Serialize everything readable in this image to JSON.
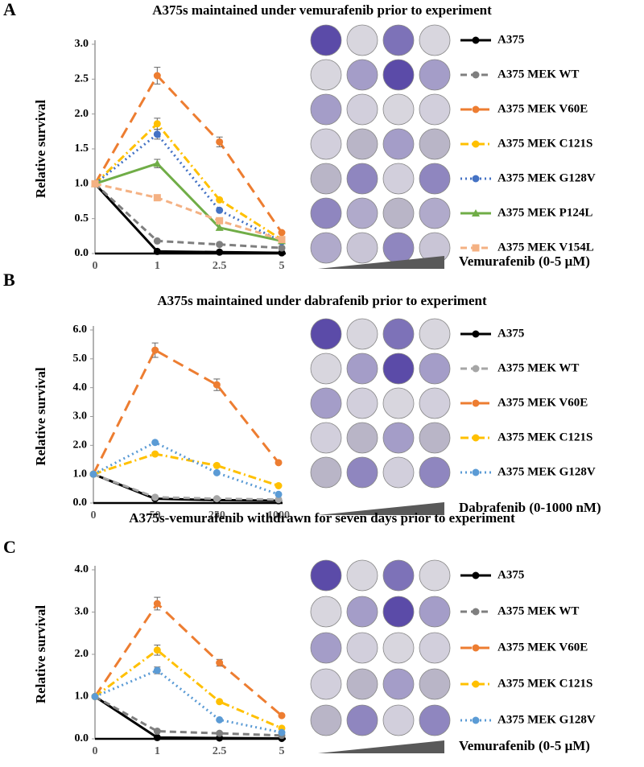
{
  "chart_data": [
    {
      "type": "line",
      "panel": "A",
      "title": "A375s maintained under vemurafenib prior to experiment",
      "y_label": "Relative survival",
      "gradient_label": "Vemurafenib (0-5 μM)",
      "categories": [
        "0",
        "1",
        "2.5",
        "5"
      ],
      "ylim": [
        0,
        3
      ],
      "yticks": [
        {
          "value": 0,
          "label": "0.0"
        },
        {
          "value": 0.5,
          "label": "0.5"
        },
        {
          "value": 1,
          "label": "1.0"
        },
        {
          "value": 1.5,
          "label": "1.5"
        },
        {
          "value": 2,
          "label": "2.0"
        },
        {
          "value": 2.5,
          "label": "2.5"
        },
        {
          "value": 3,
          "label": "3.0"
        }
      ],
      "series": [
        {
          "name": "A375",
          "color": "#000000",
          "line_style": "solid",
          "marker": "circle",
          "values": [
            1,
            0.03,
            0.02,
            0.01
          ]
        },
        {
          "name": "A375 MEK WT",
          "color": "#7f7f7f",
          "line_style": "dashed",
          "marker": "circle",
          "values": [
            1,
            0.18,
            0.13,
            0.08
          ]
        },
        {
          "name": "A375 MEK V60E",
          "color": "#ed7d31",
          "line_style": "long-dash",
          "marker": "circle",
          "values": [
            1,
            2.55,
            1.6,
            0.3
          ],
          "errors": [
            0,
            0.12,
            0.07,
            0
          ]
        },
        {
          "name": "A375 MEK C121S",
          "color": "#ffc000",
          "line_style": "dash-dot",
          "marker": "circle",
          "values": [
            1,
            1.86,
            0.77,
            0.2
          ],
          "errors": [
            0,
            0.08,
            0,
            0
          ]
        },
        {
          "name": "A375 MEK G128V",
          "color": "#4472c4",
          "line_style": "dotted",
          "marker": "circle",
          "values": [
            1,
            1.71,
            0.62,
            0.17
          ],
          "errors": [
            0,
            0.07,
            0,
            0
          ]
        },
        {
          "name": "A375 MEK P124L",
          "color": "#70ad47",
          "line_style": "solid",
          "marker": "triangle",
          "values": [
            1,
            1.29,
            0.37,
            0.18
          ],
          "errors": [
            0,
            0.06,
            0,
            0
          ]
        },
        {
          "name": "A375 MEK V154L",
          "color": "#f4b183",
          "line_style": "dashed",
          "marker": "square",
          "values": [
            1,
            0.8,
            0.47,
            0.2
          ]
        }
      ]
    },
    {
      "type": "line",
      "panel": "B",
      "title": "A375s maintained under dabrafenib prior to experiment",
      "y_label": "Relative survival",
      "gradient_label": "Dabrafenib (0-1000 nM)",
      "categories": [
        "0",
        "50",
        "250",
        "1000"
      ],
      "ylim": [
        0,
        6
      ],
      "yticks": [
        {
          "value": 0,
          "label": "0.0"
        },
        {
          "value": 1,
          "label": "1.0"
        },
        {
          "value": 2,
          "label": "2.0"
        },
        {
          "value": 3,
          "label": "3.0"
        },
        {
          "value": 4,
          "label": "4.0"
        },
        {
          "value": 5,
          "label": "5.0"
        },
        {
          "value": 6,
          "label": "6.0"
        }
      ],
      "series": [
        {
          "name": "A375",
          "color": "#000000",
          "line_style": "solid",
          "marker": "circle",
          "values": [
            1,
            0.15,
            0.1,
            0.08
          ]
        },
        {
          "name": "A375 MEK WT",
          "color": "#a6a6a6",
          "line_style": "dashed",
          "marker": "circle",
          "values": [
            1,
            0.2,
            0.15,
            0.12
          ]
        },
        {
          "name": "A375 MEK V60E",
          "color": "#ed7d31",
          "line_style": "long-dash",
          "marker": "circle",
          "values": [
            1,
            5.3,
            4.1,
            1.4
          ],
          "errors": [
            0,
            0.25,
            0.2,
            0
          ]
        },
        {
          "name": "A375 MEK C121S",
          "color": "#ffc000",
          "line_style": "dash-dot",
          "marker": "circle",
          "values": [
            1,
            1.7,
            1.3,
            0.6
          ]
        },
        {
          "name": "A375 MEK G128V",
          "color": "#5b9bd5",
          "line_style": "dotted",
          "marker": "circle",
          "values": [
            1,
            2.1,
            1.05,
            0.3
          ]
        }
      ]
    },
    {
      "type": "line",
      "panel": "C",
      "title": "A375s-vemurafenib withdrawn for seven days prior to experiment",
      "y_label": "Relative survival",
      "gradient_label": "Vemurafenib (0-5 μM)",
      "categories": [
        "0",
        "1",
        "2.5",
        "5"
      ],
      "ylim": [
        0,
        4
      ],
      "yticks": [
        {
          "value": 0,
          "label": "0.0"
        },
        {
          "value": 1,
          "label": "1.0"
        },
        {
          "value": 2,
          "label": "2.0"
        },
        {
          "value": 3,
          "label": "3.0"
        },
        {
          "value": 4,
          "label": "4.0"
        }
      ],
      "series": [
        {
          "name": "A375",
          "color": "#000000",
          "line_style": "solid",
          "marker": "circle",
          "values": [
            1,
            0.03,
            0.02,
            0.01
          ]
        },
        {
          "name": "A375 MEK WT",
          "color": "#7f7f7f",
          "line_style": "dashed",
          "marker": "circle",
          "values": [
            1,
            0.18,
            0.13,
            0.08
          ]
        },
        {
          "name": "A375 MEK V60E",
          "color": "#ed7d31",
          "line_style": "long-dash",
          "marker": "circle",
          "values": [
            1,
            3.2,
            1.8,
            0.55
          ],
          "errors": [
            0,
            0.15,
            0.08,
            0
          ]
        },
        {
          "name": "A375 MEK C121S",
          "color": "#ffc000",
          "line_style": "dash-dot",
          "marker": "circle",
          "values": [
            1,
            2.1,
            0.88,
            0.25
          ],
          "errors": [
            0,
            0.12,
            0,
            0
          ]
        },
        {
          "name": "A375 MEK G128V",
          "color": "#5b9bd5",
          "line_style": "dotted",
          "marker": "circle",
          "values": [
            1,
            1.62,
            0.45,
            0.15
          ],
          "errors": [
            0,
            0.08,
            0,
            0
          ]
        }
      ]
    }
  ]
}
